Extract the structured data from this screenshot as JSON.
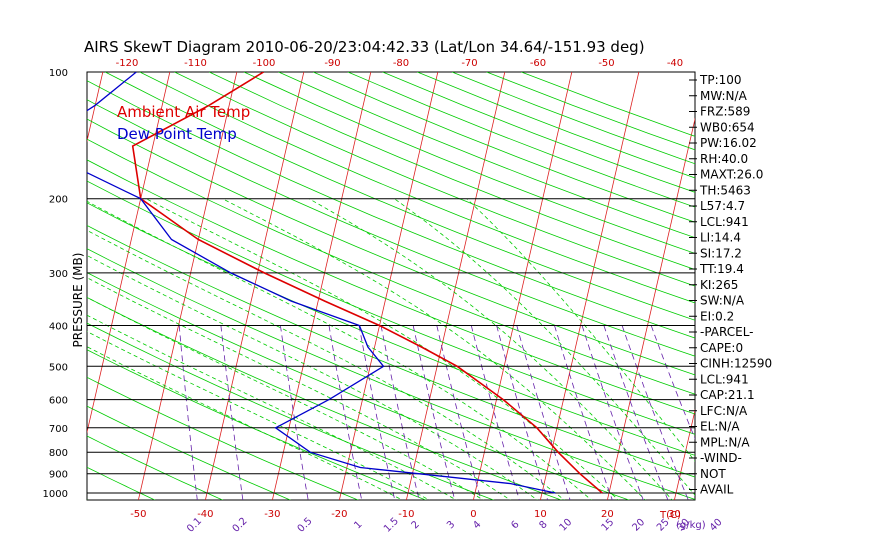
{
  "chart_data": {
    "type": "line",
    "title": "AIRS SkewT Diagram 2010-06-20/23:04:42.33 (Lat/Lon 34.64/-151.93 deg)",
    "ylabel": "PRESSURE (MB)",
    "top_axis_ticks": [
      "-120",
      "-110",
      "-100",
      "-90",
      "-80",
      "-70",
      "-60",
      "-50",
      "-40"
    ],
    "bottom_temp_ticks": [
      "-50",
      "-40",
      "-30",
      "-20",
      "-10",
      "0",
      "10",
      "20",
      "30"
    ],
    "bottom_temp_unit": "T(C)",
    "mixing_ratio_ticks": [
      "0.1",
      "0.2",
      "0.5",
      "1",
      "1.5",
      "2",
      "3",
      "4",
      "6",
      "8",
      "10",
      "15",
      "20",
      "25",
      "30",
      "40"
    ],
    "mixing_ratio_unit": "(g/kg)",
    "pressure_ticks": [
      {
        "label": "100",
        "p": 100
      },
      {
        "label": "200",
        "p": 200
      },
      {
        "label": "300",
        "p": 300
      },
      {
        "label": "400",
        "p": 400
      },
      {
        "label": "500",
        "p": 500
      },
      {
        "label": "600",
        "p": 600
      },
      {
        "label": "700",
        "p": 700
      },
      {
        "label": "800",
        "p": 800
      },
      {
        "label": "900",
        "p": 900
      },
      {
        "label": "1000",
        "p": 1000
      }
    ],
    "series": [
      {
        "name": "Ambient Air Temp",
        "color": "#dd0000",
        "points": [
          {
            "p": 100,
            "t": -46
          },
          {
            "p": 120,
            "t": -53
          },
          {
            "p": 150,
            "t": -63
          },
          {
            "p": 200,
            "t": -60
          },
          {
            "p": 250,
            "t": -50
          },
          {
            "p": 300,
            "t": -39
          },
          {
            "p": 350,
            "t": -29
          },
          {
            "p": 400,
            "t": -20
          },
          {
            "p": 450,
            "t": -13
          },
          {
            "p": 500,
            "t": -7
          },
          {
            "p": 600,
            "t": 1
          },
          {
            "p": 700,
            "t": 7
          },
          {
            "p": 800,
            "t": 11
          },
          {
            "p": 900,
            "t": 15
          },
          {
            "p": 1000,
            "t": 19
          }
        ]
      },
      {
        "name": "Dew Point Temp",
        "color": "#0000cc",
        "points": [
          {
            "p": 100,
            "t": -65
          },
          {
            "p": 120,
            "t": -70
          },
          {
            "p": 150,
            "t": -78
          },
          {
            "p": 200,
            "t": -60
          },
          {
            "p": 250,
            "t": -54
          },
          {
            "p": 300,
            "t": -44
          },
          {
            "p": 350,
            "t": -34
          },
          {
            "p": 400,
            "t": -23
          },
          {
            "p": 450,
            "t": -21
          },
          {
            "p": 500,
            "t": -18
          },
          {
            "p": 600,
            "t": -25
          },
          {
            "p": 700,
            "t": -32
          },
          {
            "p": 800,
            "t": -26
          },
          {
            "p": 870,
            "t": -18
          },
          {
            "p": 950,
            "t": 5
          },
          {
            "p": 1000,
            "t": 12
          }
        ]
      }
    ],
    "stats": [
      "TP:100",
      "MW:N/A",
      "FRZ:589",
      "WB0:654",
      "PW:16.02",
      "RH:40.0",
      "MAXT:26.0",
      "TH:5463",
      "L57:4.7",
      "LCL:941",
      "LI:14.4",
      "SI:17.2",
      "TT:19.4",
      "KI:265",
      "SW:N/A",
      "EI:0.2",
      "-PARCEL-",
      "CAPE:0",
      "CINH:12590",
      "LCL:941",
      "CAP:21.1",
      "LFC:N/A",
      "EL:N/A",
      "MPL:N/A",
      "-WIND-",
      "NOT",
      "AVAIL"
    ],
    "colors": {
      "isotherm": "#dd2222",
      "dry_adiabat": "#00cc00",
      "moist_adiabat": "#00cc00",
      "mixing_ratio": "#6622aa",
      "isobar": "#000000",
      "top_ticks": "#cc0000",
      "bottom_temp_ticks": "#cc0000",
      "mixing_ticks": "#6622aa"
    }
  }
}
